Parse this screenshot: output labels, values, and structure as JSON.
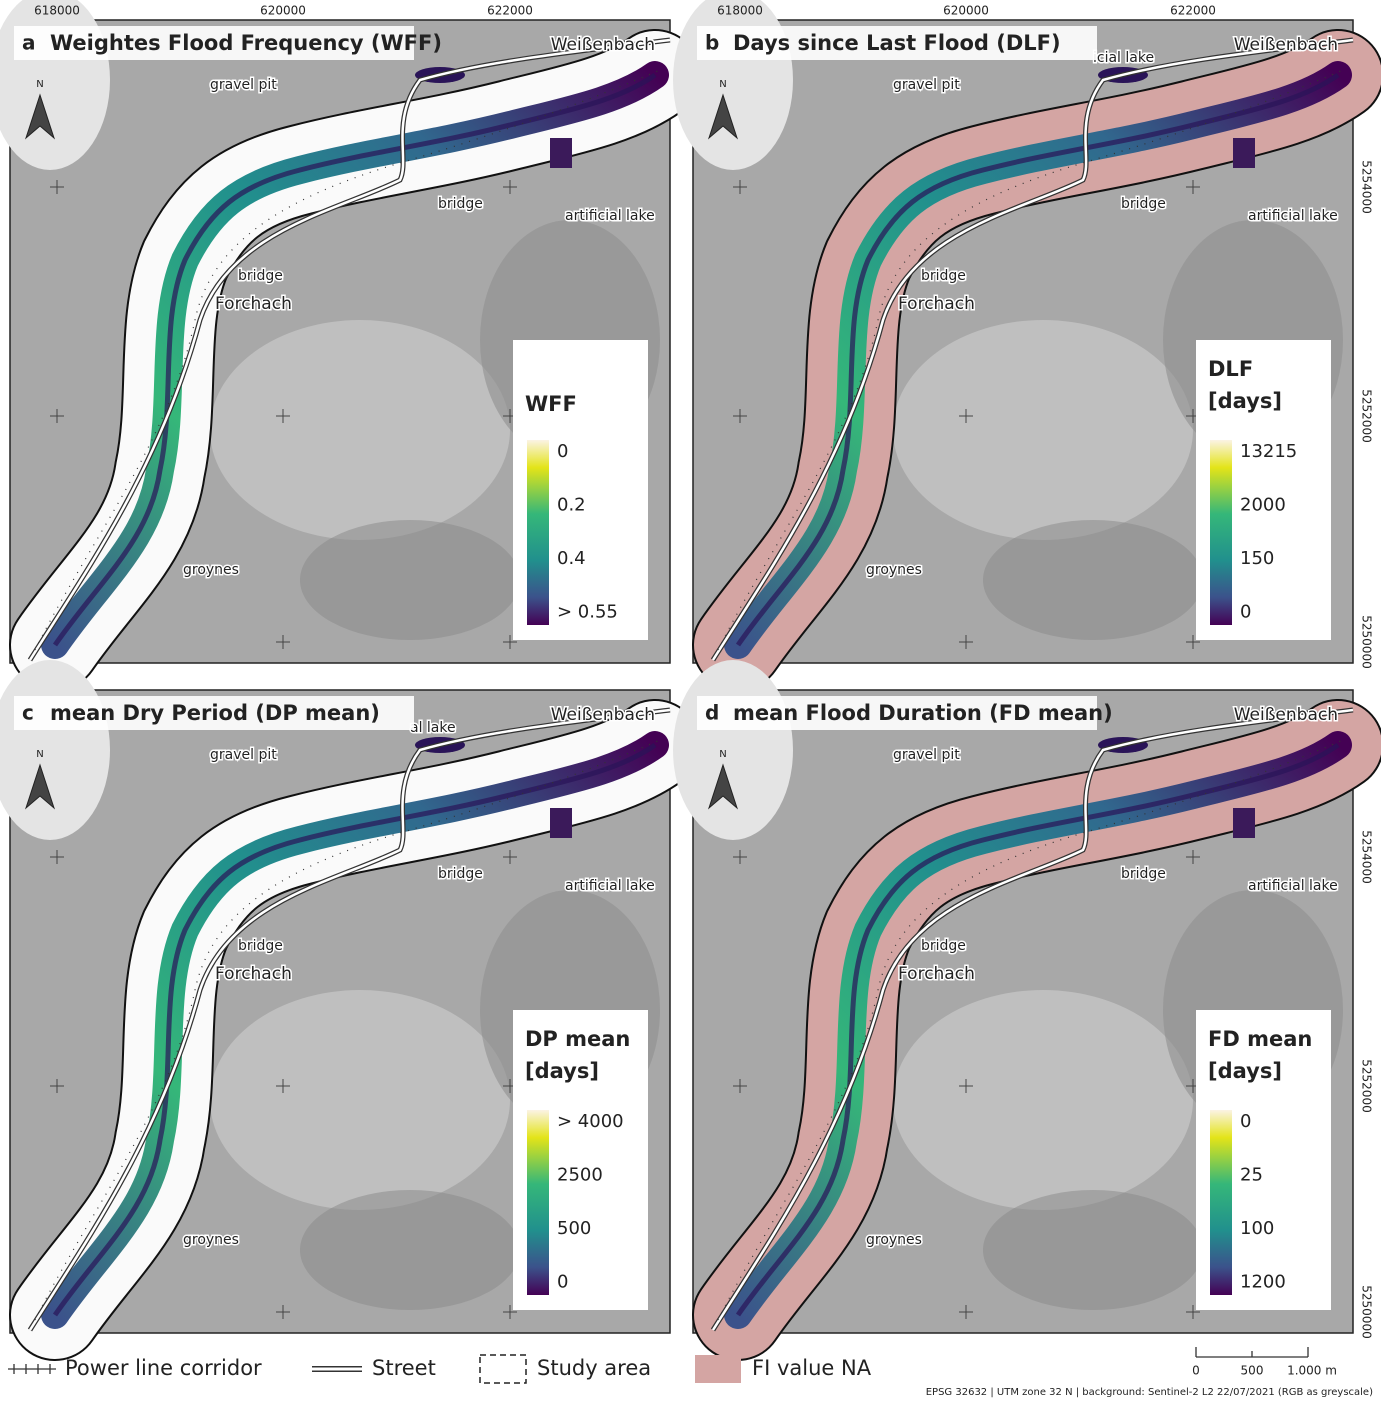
{
  "panels": [
    {
      "letter": "a",
      "title": "Weightes Flood Frequency (WFF)",
      "town_ne": "Weißenbach",
      "gravel": "gravel pit",
      "bridge_1": "bridge",
      "lake": "artificial lake",
      "bridge_2": "bridge",
      "town": "Forchach",
      "groynes": "groynes",
      "legend_title": [
        "WFF"
      ],
      "legend_ticks": [
        "0",
        "0.2",
        "0.4",
        "> 0.55"
      ]
    },
    {
      "letter": "b",
      "title": "Days since Last Flood (DLF)",
      "lake_partial": "icial lake",
      "town_ne": "Weißenbach",
      "gravel": "gravel pit",
      "bridge_1": "bridge",
      "lake": "artificial lake",
      "bridge_2": "bridge",
      "town": "Forchach",
      "groynes": "groynes",
      "legend_title": [
        "DLF",
        "[days]"
      ],
      "legend_ticks": [
        "13215",
        "2000",
        "150",
        "0"
      ]
    },
    {
      "letter": "c",
      "title": "mean Dry Period (DP mean)",
      "lake_partial": "al lake",
      "town_ne": "Weißenbach",
      "gravel": "gravel pit",
      "bridge_1": "bridge",
      "lake": "artificial lake",
      "bridge_2": "bridge",
      "town": "Forchach",
      "groynes": "groynes",
      "legend_title": [
        "DP mean",
        "[days]"
      ],
      "legend_ticks": [
        "> 4000",
        "2500",
        "500",
        "0"
      ]
    },
    {
      "letter": "d",
      "title": "mean Flood Duration (FD mean)",
      "town_ne": "Weißenbach",
      "gravel": "gravel pit",
      "bridge_1": "bridge",
      "lake": "artificial lake",
      "bridge_2": "bridge",
      "town": "Forchach",
      "groynes": "groynes",
      "legend_title": [
        "FD mean",
        "[days]"
      ],
      "legend_ticks": [
        "0",
        "25",
        "100",
        "1200"
      ]
    }
  ],
  "north": "N",
  "easting": [
    "618000",
    "620000",
    "622000"
  ],
  "northing": [
    "5254000",
    "5252000",
    "5250000"
  ],
  "legend": [
    "Power line corridor",
    "Street",
    "Study area",
    "FI value NA"
  ],
  "scale_bar": [
    "0",
    "500",
    "1.000 m"
  ],
  "footer": "EPSG 32632 | UTM zone 32 N | background: Sentinel-2 L2 22/07/2021 (RGB as greyscale)"
}
